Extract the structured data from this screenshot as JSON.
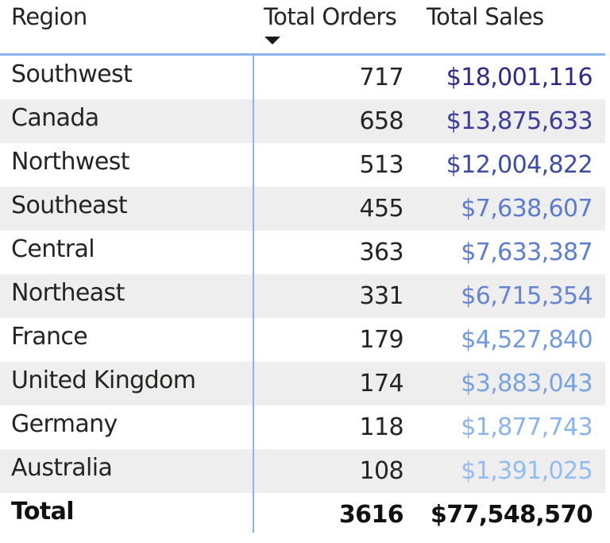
{
  "table": {
    "columns": [
      {
        "label": "Region"
      },
      {
        "label": "Total Orders",
        "sort": "descending"
      },
      {
        "label": "Total Sales"
      }
    ],
    "sort_icon": "sort-descending-arrow-icon",
    "rows": [
      {
        "region": "Southwest",
        "orders": "717",
        "sales": "$18,001,116",
        "sales_color": "#2e2a8c"
      },
      {
        "region": "Canada",
        "orders": "658",
        "sales": "$13,875,633",
        "sales_color": "#3b3d9e"
      },
      {
        "region": "Northwest",
        "orders": "513",
        "sales": "$12,004,822",
        "sales_color": "#3d4aa6"
      },
      {
        "region": "Southeast",
        "orders": "455",
        "sales": "$7,638,607",
        "sales_color": "#5b7cd0"
      },
      {
        "region": "Central",
        "orders": "363",
        "sales": "$7,633,387",
        "sales_color": "#5b7dd2"
      },
      {
        "region": "Northeast",
        "orders": "331",
        "sales": "$6,715,354",
        "sales_color": "#6585d4"
      },
      {
        "region": "France",
        "orders": "179",
        "sales": "$4,527,840",
        "sales_color": "#7099e0"
      },
      {
        "region": "United Kingdom",
        "orders": "174",
        "sales": "$3,883,043",
        "sales_color": "#78a2e4"
      },
      {
        "region": "Germany",
        "orders": "118",
        "sales": "$1,877,743",
        "sales_color": "#8ab4f0"
      },
      {
        "region": "Australia",
        "orders": "108",
        "sales": "$1,391,025",
        "sales_color": "#93bcf3"
      }
    ],
    "total": {
      "label": "Total",
      "orders": "3616",
      "sales": "$77,548,570"
    }
  },
  "colors": {
    "accent": "#8ab4f0",
    "alt_row": "#eeeeee",
    "text": "#252423"
  }
}
